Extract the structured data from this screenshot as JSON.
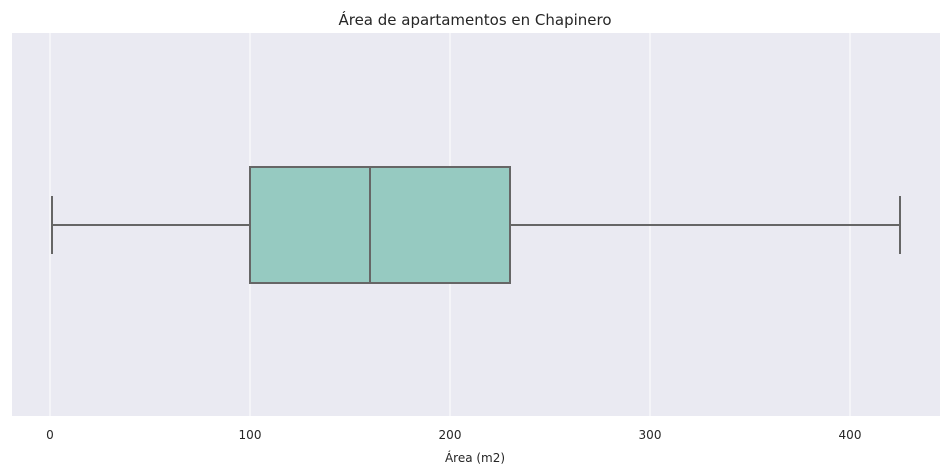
{
  "chart_data": {
    "type": "box",
    "orientation": "horizontal",
    "title": "Área de apartamentos en Chapinero",
    "xlabel": "Área (m2)",
    "ylabel": "",
    "xlim": [
      -19,
      445
    ],
    "xticks": [
      0,
      100,
      200,
      300,
      400
    ],
    "xtick_labels": [
      "0",
      "100",
      "200",
      "300",
      "400"
    ],
    "grid": true,
    "box": {
      "whisker_low": 1,
      "q1": 100,
      "median": 160,
      "q3": 230,
      "whisker_high": 425
    },
    "colors": {
      "background": "#eaeaf2",
      "grid": "#ffffff",
      "box_fill": "#96cac1",
      "line": "#666666"
    }
  }
}
